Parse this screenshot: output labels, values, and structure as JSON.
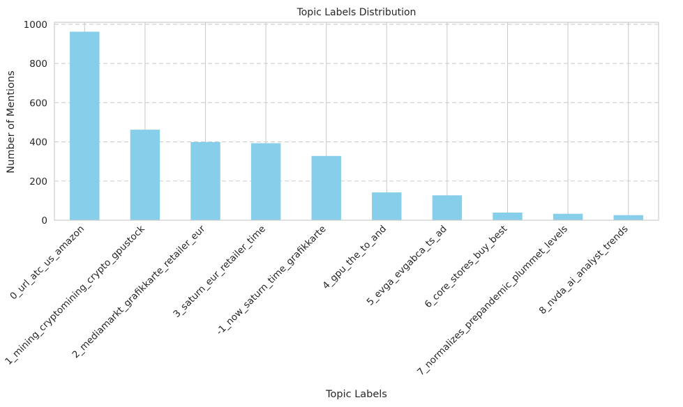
{
  "chart_data": {
    "type": "bar",
    "title": "Topic Labels Distribution",
    "xlabel": "Topic Labels",
    "ylabel": "Number of Mentions",
    "categories": [
      "0_url_atc_us_amazon",
      "1_mining_cryptomining_crypto_gpustock",
      "2_mediamarkt_grafikkarte_retailer_eur",
      "3_saturn_eur_retailer_time",
      "-1_now_saturn_time_grafikkarte",
      "4_gpu_the_to_and",
      "5_evga_evgabca_ts_ad",
      "6_core_stores_buy_best",
      "7_normalizes_prepandemic_plummet_levels",
      "8_nvda_ai_analyst_trends"
    ],
    "values": [
      962,
      462,
      399,
      393,
      328,
      142,
      127,
      39,
      33,
      26
    ],
    "ylim": [
      0,
      1010
    ],
    "yticks": [
      0,
      200,
      400,
      600,
      800,
      1000
    ],
    "grid": true,
    "legend": "none",
    "colors": {
      "bar": "#87ceeb",
      "grid": "#cccccc",
      "axes": "#cccccc",
      "text": "#262626"
    }
  }
}
